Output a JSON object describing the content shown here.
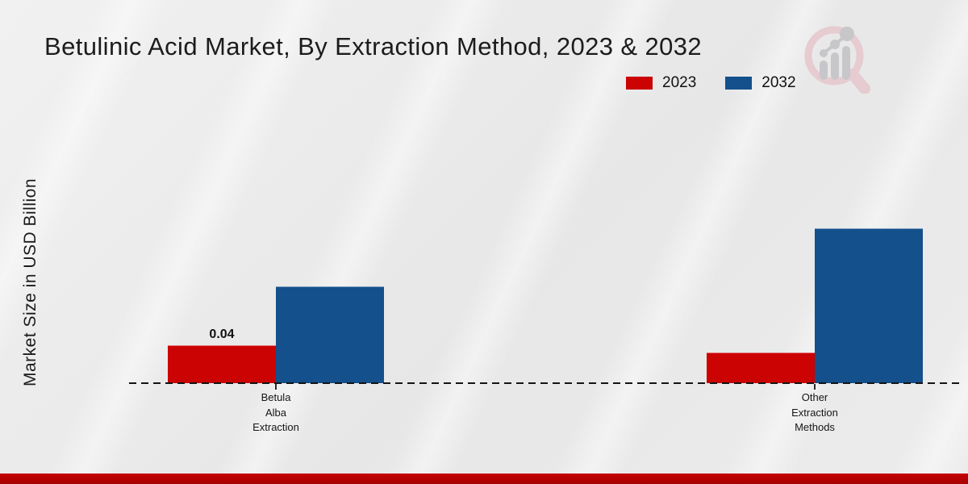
{
  "title": "Betulinic Acid Market, By Extraction Method, 2023 & 2032",
  "ylabel": "Market Size in USD Billion",
  "legend": [
    {
      "label": "2023",
      "color": "#cb0302"
    },
    {
      "label": "2032",
      "color": "#14508c"
    }
  ],
  "categories_display": [
    "Betula\nAlba\nExtraction",
    "Other\nExtraction\nMethods"
  ],
  "icons": {
    "watermark": "magnifier-bar-chart-logo"
  },
  "colors": {
    "red_2023": "#cb0302",
    "blue_2032": "#14508c",
    "footer_strip": "#c50101",
    "baseline": "#141414",
    "watermark_ring": "#e6cbd0",
    "watermark_bars": "#c7c7ca"
  },
  "chart_data": {
    "type": "bar",
    "categories": [
      "Betula Alba Extraction",
      "Other Extraction Methods"
    ],
    "series": [
      {
        "name": "2023",
        "color": "#cb0302",
        "values": [
          0.04,
          0.032
        ],
        "labels": [
          "0.04",
          ""
        ]
      },
      {
        "name": "2032",
        "color": "#14508c",
        "values": [
          0.102,
          0.163
        ],
        "labels": [
          "",
          ""
        ]
      }
    ],
    "title": "Betulinic Acid Market, By Extraction Method, 2023 & 2032",
    "xlabel": "",
    "ylabel": "Market Size in USD Billion",
    "ylim": [
      0,
      0.175
    ],
    "grid": false,
    "legend_position": "top-right",
    "baseline_style": "dashed",
    "data_labels_shown": [
      "0.04 on 2023 Betula Alba Extraction bar"
    ]
  }
}
